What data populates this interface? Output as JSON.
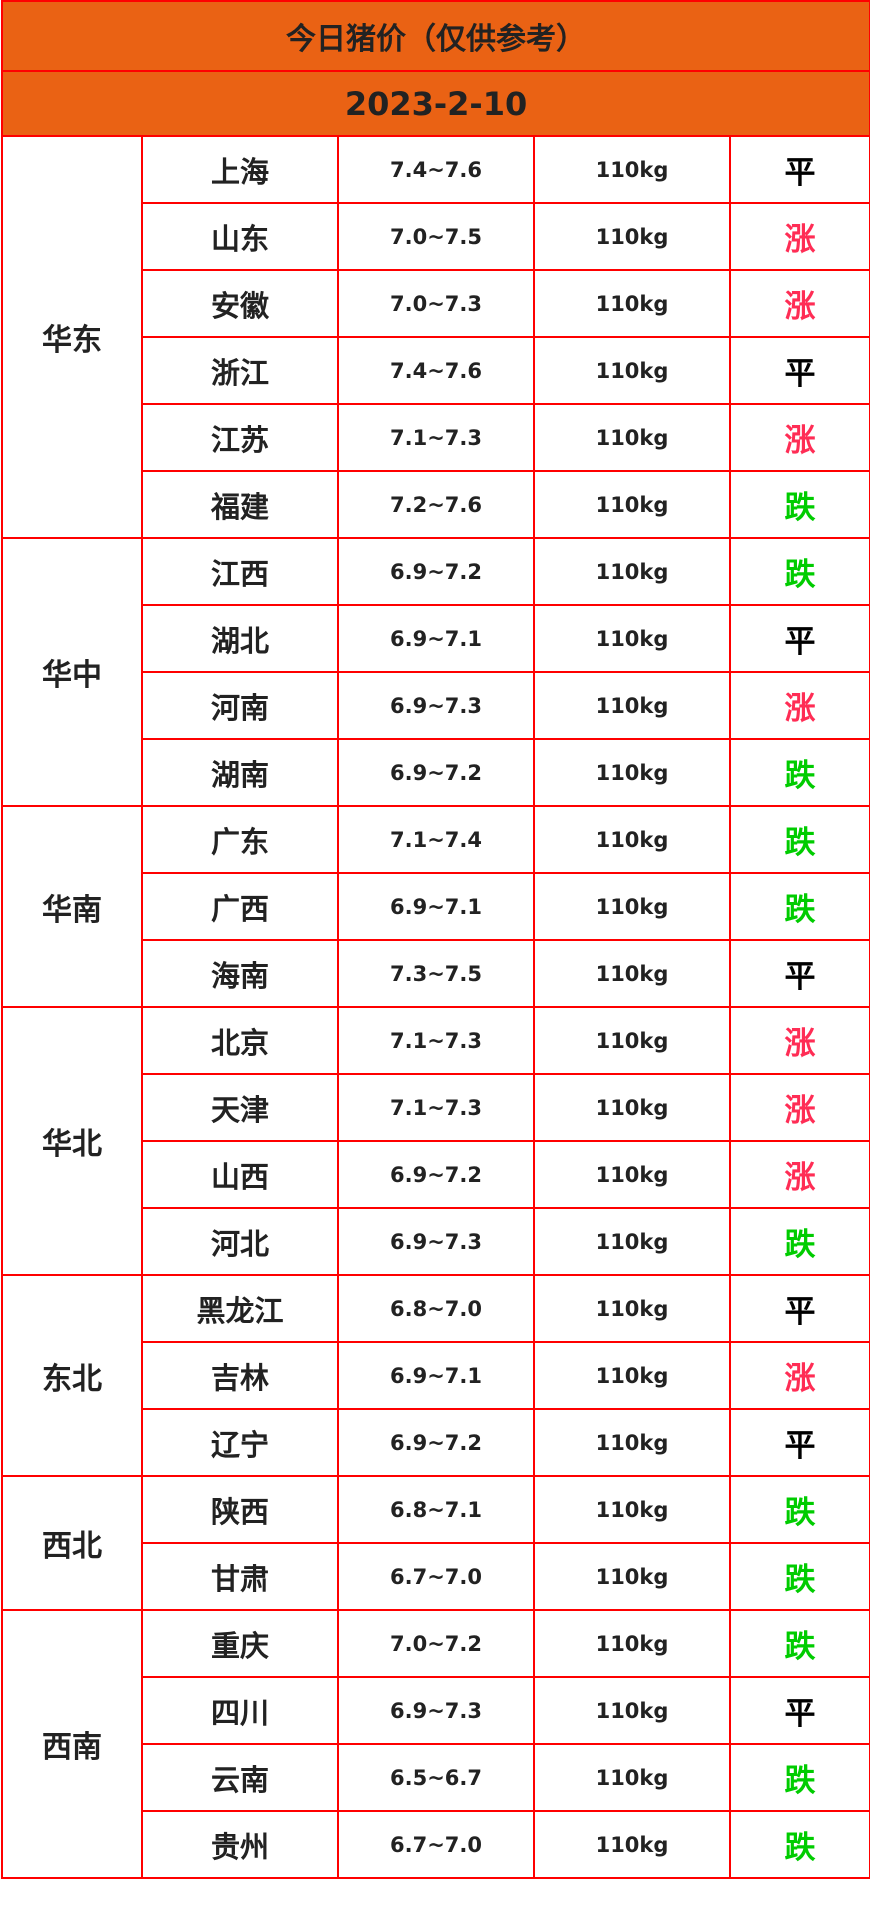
{
  "title": "今日猪价（仅供参考）",
  "date": "2023-2-10",
  "colors": {
    "header_bg": "#ea6214",
    "border": "#ff0000",
    "up": "#ff2d55",
    "down": "#00cc00",
    "flat": "#000000"
  },
  "regions": [
    {
      "name": "华东",
      "rows": [
        {
          "province": "上海",
          "price": "7.4~7.6",
          "weight": "110kg",
          "trend": "平"
        },
        {
          "province": "山东",
          "price": "7.0~7.5",
          "weight": "110kg",
          "trend": "涨"
        },
        {
          "province": "安徽",
          "price": "7.0~7.3",
          "weight": "110kg",
          "trend": "涨"
        },
        {
          "province": "浙江",
          "price": "7.4~7.6",
          "weight": "110kg",
          "trend": "平"
        },
        {
          "province": "江苏",
          "price": "7.1~7.3",
          "weight": "110kg",
          "trend": "涨"
        },
        {
          "province": "福建",
          "price": "7.2~7.6",
          "weight": "110kg",
          "trend": "跌"
        }
      ]
    },
    {
      "name": "华中",
      "rows": [
        {
          "province": "江西",
          "price": "6.9~7.2",
          "weight": "110kg",
          "trend": "跌"
        },
        {
          "province": "湖北",
          "price": "6.9~7.1",
          "weight": "110kg",
          "trend": "平"
        },
        {
          "province": "河南",
          "price": "6.9~7.3",
          "weight": "110kg",
          "trend": "涨"
        },
        {
          "province": "湖南",
          "price": "6.9~7.2",
          "weight": "110kg",
          "trend": "跌"
        }
      ]
    },
    {
      "name": "华南",
      "rows": [
        {
          "province": "广东",
          "price": "7.1~7.4",
          "weight": "110kg",
          "trend": "跌"
        },
        {
          "province": "广西",
          "price": "6.9~7.1",
          "weight": "110kg",
          "trend": "跌"
        },
        {
          "province": "海南",
          "price": "7.3~7.5",
          "weight": "110kg",
          "trend": "平"
        }
      ]
    },
    {
      "name": "华北",
      "rows": [
        {
          "province": "北京",
          "price": "7.1~7.3",
          "weight": "110kg",
          "trend": "涨"
        },
        {
          "province": "天津",
          "price": "7.1~7.3",
          "weight": "110kg",
          "trend": "涨"
        },
        {
          "province": "山西",
          "price": "6.9~7.2",
          "weight": "110kg",
          "trend": "涨"
        },
        {
          "province": "河北",
          "price": "6.9~7.3",
          "weight": "110kg",
          "trend": "跌"
        }
      ]
    },
    {
      "name": "东北",
      "rows": [
        {
          "province": "黑龙江",
          "price": "6.8~7.0",
          "weight": "110kg",
          "trend": "平"
        },
        {
          "province": "吉林",
          "price": "6.9~7.1",
          "weight": "110kg",
          "trend": "涨"
        },
        {
          "province": "辽宁",
          "price": "6.9~7.2",
          "weight": "110kg",
          "trend": "平"
        }
      ]
    },
    {
      "name": "西北",
      "rows": [
        {
          "province": "陕西",
          "price": "6.8~7.1",
          "weight": "110kg",
          "trend": "跌"
        },
        {
          "province": "甘肃",
          "price": "6.7~7.0",
          "weight": "110kg",
          "trend": "跌"
        }
      ]
    },
    {
      "name": "西南",
      "rows": [
        {
          "province": "重庆",
          "price": "7.0~7.2",
          "weight": "110kg",
          "trend": "跌"
        },
        {
          "province": "四川",
          "price": "6.9~7.3",
          "weight": "110kg",
          "trend": "平"
        },
        {
          "province": "云南",
          "price": "6.5~6.7",
          "weight": "110kg",
          "trend": "跌"
        },
        {
          "province": "贵州",
          "price": "6.7~7.0",
          "weight": "110kg",
          "trend": "跌"
        }
      ]
    }
  ]
}
